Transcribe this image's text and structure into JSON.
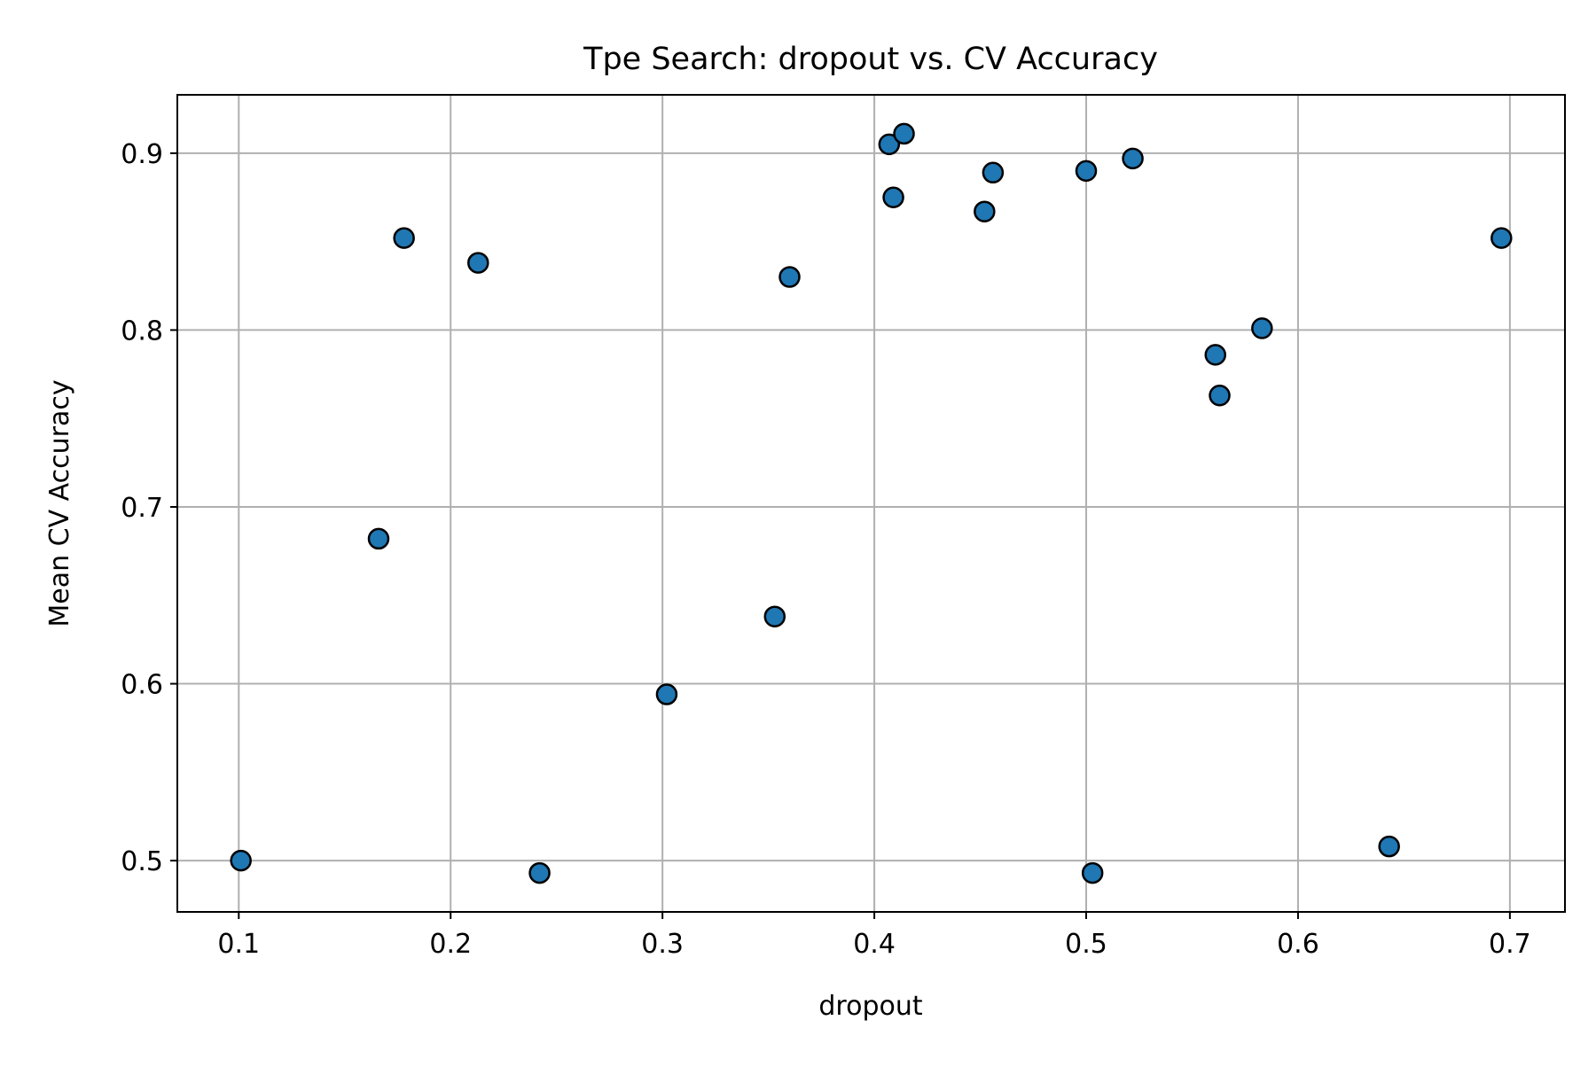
{
  "chart_data": {
    "type": "scatter",
    "title": "Tpe Search: dropout vs. CV Accuracy",
    "xlabel": "dropout",
    "ylabel": "Mean CV Accuracy",
    "xlim": [
      0.071,
      0.726
    ],
    "ylim": [
      0.471,
      0.933
    ],
    "xticks": [
      0.1,
      0.2,
      0.3,
      0.4,
      0.5,
      0.6,
      0.7
    ],
    "xtick_labels": [
      "0.1",
      "0.2",
      "0.3",
      "0.4",
      "0.5",
      "0.6",
      "0.7"
    ],
    "yticks": [
      0.5,
      0.6,
      0.7,
      0.8,
      0.9
    ],
    "ytick_labels": [
      "0.5",
      "0.6",
      "0.7",
      "0.8",
      "0.9"
    ],
    "grid": true,
    "legend": "none",
    "colors": {
      "marker_fill": "#1f77b4",
      "marker_edge": "#000000",
      "grid": "#b0b0b0"
    },
    "series": [
      {
        "points": [
          {
            "x": 0.101,
            "y": 0.5
          },
          {
            "x": 0.166,
            "y": 0.682
          },
          {
            "x": 0.178,
            "y": 0.852
          },
          {
            "x": 0.213,
            "y": 0.838
          },
          {
            "x": 0.242,
            "y": 0.493
          },
          {
            "x": 0.302,
            "y": 0.594
          },
          {
            "x": 0.353,
            "y": 0.638
          },
          {
            "x": 0.36,
            "y": 0.83
          },
          {
            "x": 0.407,
            "y": 0.905
          },
          {
            "x": 0.409,
            "y": 0.875
          },
          {
            "x": 0.414,
            "y": 0.911
          },
          {
            "x": 0.452,
            "y": 0.867
          },
          {
            "x": 0.456,
            "y": 0.889
          },
          {
            "x": 0.5,
            "y": 0.89
          },
          {
            "x": 0.503,
            "y": 0.493
          },
          {
            "x": 0.522,
            "y": 0.897
          },
          {
            "x": 0.561,
            "y": 0.786
          },
          {
            "x": 0.563,
            "y": 0.763
          },
          {
            "x": 0.583,
            "y": 0.801
          },
          {
            "x": 0.643,
            "y": 0.508
          },
          {
            "x": 0.696,
            "y": 0.852
          }
        ]
      }
    ]
  }
}
